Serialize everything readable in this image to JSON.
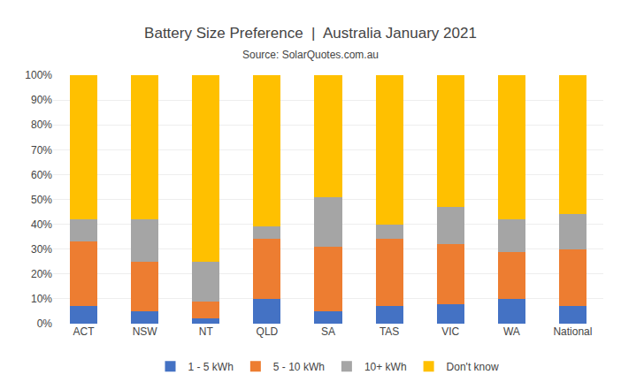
{
  "chart_data": {
    "type": "bar",
    "stacked": true,
    "title": "Battery Size Preference  |  Australia January 2021",
    "subtitle": "Source: SolarQuotes.com.au",
    "categories": [
      "ACT",
      "NSW",
      "NT",
      "QLD",
      "SA",
      "TAS",
      "VIC",
      "WA",
      "National"
    ],
    "series": [
      {
        "name": "1 - 5 kWh",
        "color": "#4472c4",
        "values": [
          7,
          5,
          2,
          10,
          5,
          7,
          8,
          10,
          7
        ]
      },
      {
        "name": "5 - 10 kWh",
        "color": "#ed7d31",
        "values": [
          26,
          20,
          7,
          24,
          26,
          27,
          24,
          19,
          23
        ]
      },
      {
        "name": "10+ kWh",
        "color": "#a5a5a5",
        "values": [
          9,
          17,
          16,
          5,
          20,
          6,
          15,
          13,
          14
        ]
      },
      {
        "name": "Don't know",
        "color": "#ffc000",
        "values": [
          58,
          58,
          75,
          61,
          49,
          60,
          53,
          58,
          56
        ]
      }
    ],
    "ylim": [
      0,
      100
    ],
    "yticks": [
      {
        "value": 0,
        "label": "0%"
      },
      {
        "value": 10,
        "label": "10%"
      },
      {
        "value": 20,
        "label": "20%"
      },
      {
        "value": 30,
        "label": "30%"
      },
      {
        "value": 40,
        "label": "40%"
      },
      {
        "value": 50,
        "label": "50%"
      },
      {
        "value": 60,
        "label": "60%"
      },
      {
        "value": 70,
        "label": "70%"
      },
      {
        "value": 80,
        "label": "80%"
      },
      {
        "value": 90,
        "label": "90%"
      },
      {
        "value": 100,
        "label": "100%"
      }
    ],
    "grid": true,
    "legend": "bottom"
  }
}
